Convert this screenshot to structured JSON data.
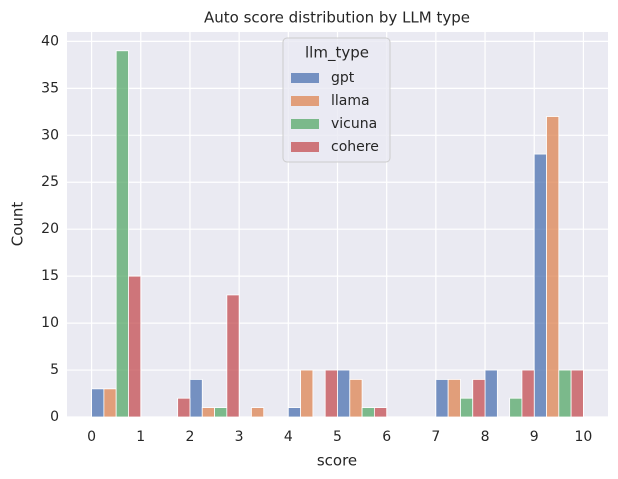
{
  "chart_data": {
    "type": "histogram",
    "title": "Auto score distribution by LLM type",
    "x_label": "score",
    "y_label": "Count",
    "bins": [
      0,
      1,
      2,
      3,
      4,
      5,
      6,
      7,
      8,
      9,
      10
    ],
    "series": [
      {
        "name": "gpt",
        "color": "#4c72b0",
        "values": [
          3,
          0,
          4,
          0,
          1,
          5,
          0,
          4,
          5,
          28
        ]
      },
      {
        "name": "llama",
        "color": "#dd8452",
        "values": [
          3,
          0,
          1,
          1,
          5,
          4,
          0,
          4,
          0,
          32
        ]
      },
      {
        "name": "vicuna",
        "color": "#55a868",
        "values": [
          39,
          0,
          1,
          0,
          0,
          1,
          0,
          2,
          2,
          5
        ]
      },
      {
        "name": "cohere",
        "color": "#c44e52",
        "values": [
          15,
          2,
          13,
          0,
          5,
          1,
          0,
          4,
          5,
          5
        ]
      }
    ],
    "legend_title": "llm_type",
    "legend_position": "upper center",
    "xlim": [
      -0.5,
      10.5
    ],
    "xticks": [
      0,
      1,
      2,
      3,
      4,
      5,
      6,
      7,
      8,
      9,
      10
    ],
    "ylim": [
      0,
      41
    ],
    "yticks": [
      0,
      5,
      10,
      15,
      20,
      25,
      30,
      35,
      40
    ],
    "grid": true,
    "opacity": 0.75
  }
}
